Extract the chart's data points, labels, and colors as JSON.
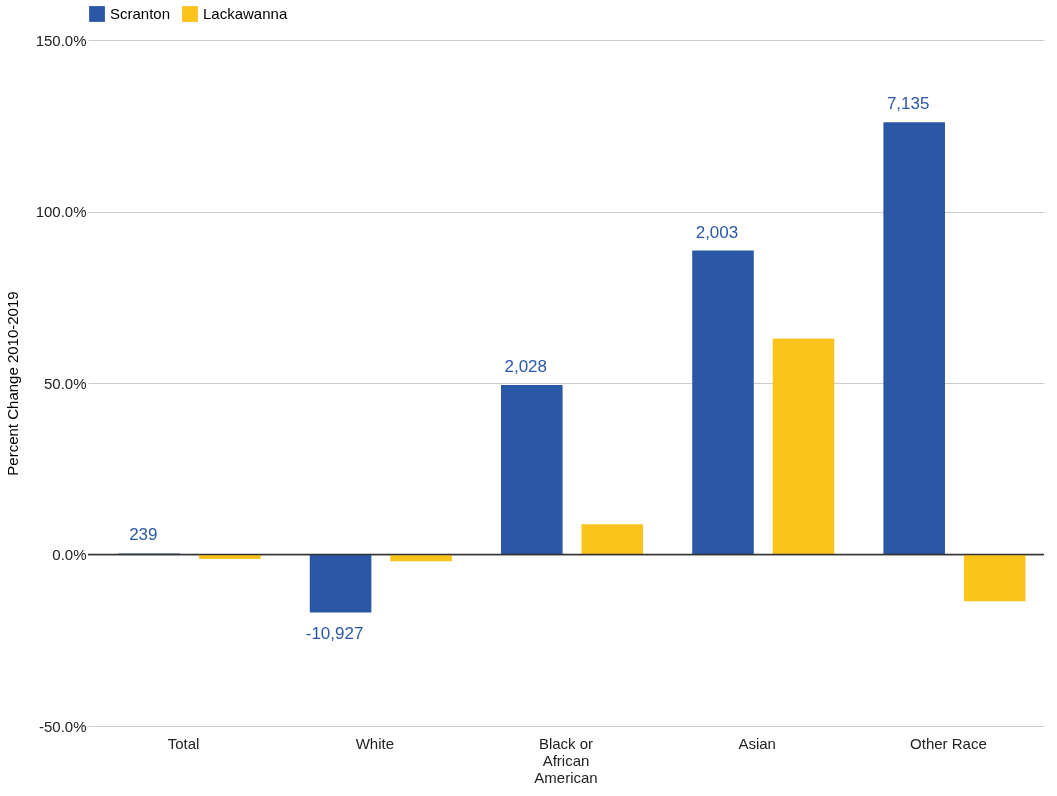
{
  "chart_data": {
    "type": "bar",
    "ylabel": "Percent Change 2010-2019",
    "categories": [
      "Total",
      "White",
      "Black or African American",
      "Asian",
      "Other Race"
    ],
    "series": [
      {
        "name": "Scranton",
        "color": "#2b58a6",
        "values": [
          0.3,
          -16.9,
          49.4,
          88.6,
          126
        ]
      },
      {
        "name": "Lackawanna",
        "color": "#fcc31b",
        "values": [
          -1.3,
          -2,
          8.8,
          63,
          -13.6
        ]
      }
    ],
    "annotations": [
      {
        "text": "239",
        "x": "Total",
        "y": 0.3
      },
      {
        "text": "-10,927",
        "x": "White",
        "y": -16.9
      },
      {
        "text": "2,028",
        "x": "Black or African American",
        "y": 49.4
      },
      {
        "text": "2,003",
        "x": "Asian",
        "y": 88.6
      },
      {
        "text": "7,135",
        "x": "Other Race",
        "y": 126
      }
    ],
    "ylim": [
      -50,
      150
    ],
    "yticks": [
      {
        "value": -50,
        "label": "-50.0%"
      },
      {
        "value": 0,
        "label": "0.0%"
      },
      {
        "value": 50,
        "label": "50.0%"
      },
      {
        "value": 100,
        "label": "100.0%"
      },
      {
        "value": 150,
        "label": "150.0%"
      }
    ],
    "ref_lines": [
      {
        "axis": "y",
        "value": 0,
        "color": "#333333"
      }
    ],
    "grid": "y",
    "legend": "top"
  }
}
